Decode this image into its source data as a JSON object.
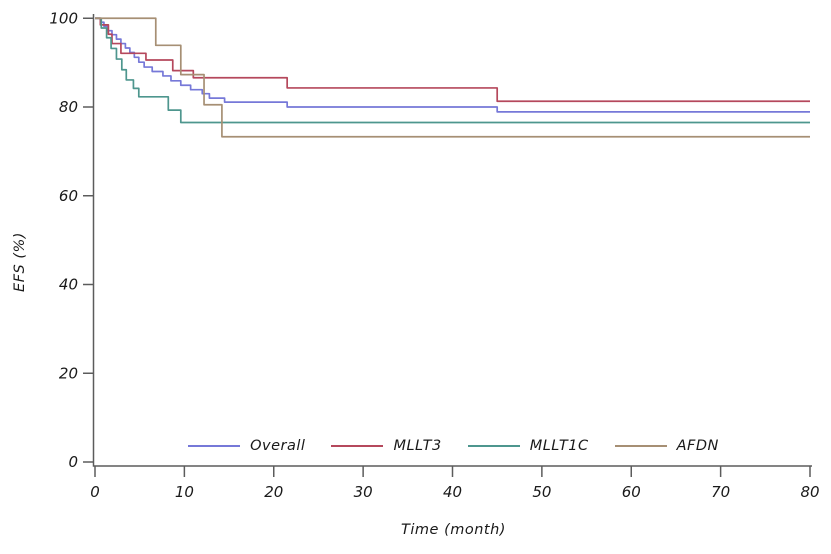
{
  "chart_data": {
    "type": "line",
    "subtype": "kaplan-meier-step",
    "title": "",
    "xlabel": "Time (month)",
    "ylabel": "EFS (%)",
    "xlim": [
      0,
      80
    ],
    "ylim": [
      0,
      100
    ],
    "xticks": [
      0,
      10,
      20,
      30,
      40,
      50,
      60,
      70,
      80
    ],
    "yticks": [
      0,
      20,
      40,
      60,
      80,
      100
    ],
    "grid": false,
    "legend_position": "bottom-center",
    "x_end": 80,
    "series": [
      {
        "name": "Overall",
        "color": "#7678d8",
        "steps": [
          [
            0,
            100
          ],
          [
            0.6,
            99.1
          ],
          [
            1.0,
            98.2
          ],
          [
            1.4,
            97.2
          ],
          [
            1.9,
            96.3
          ],
          [
            2.4,
            95.3
          ],
          [
            2.9,
            94.3
          ],
          [
            3.4,
            93.3
          ],
          [
            3.9,
            92.3
          ],
          [
            4.4,
            91.2
          ],
          [
            4.9,
            90.1
          ],
          [
            5.5,
            89.0
          ],
          [
            6.4,
            88.0
          ],
          [
            7.6,
            87.0
          ],
          [
            8.5,
            85.9
          ],
          [
            9.6,
            84.9
          ],
          [
            10.7,
            83.9
          ],
          [
            12.0,
            83.0
          ],
          [
            12.8,
            82.0
          ],
          [
            14.5,
            81.1
          ],
          [
            21.5,
            80.0
          ],
          [
            45,
            78.9
          ]
        ]
      },
      {
        "name": "MLLT3",
        "color": "#b5485c",
        "steps": [
          [
            0,
            100
          ],
          [
            0.6,
            98.5
          ],
          [
            1.5,
            96.4
          ],
          [
            1.9,
            94.3
          ],
          [
            2.9,
            92.1
          ],
          [
            5.7,
            90.6
          ],
          [
            8.7,
            88.2
          ],
          [
            11.0,
            86.6
          ],
          [
            21.5,
            84.3
          ],
          [
            45,
            81.3
          ]
        ]
      },
      {
        "name": "MLLT1C",
        "color": "#4e968e",
        "steps": [
          [
            0,
            100
          ],
          [
            0.7,
            97.8
          ],
          [
            1.3,
            95.6
          ],
          [
            1.8,
            93.2
          ],
          [
            2.4,
            90.8
          ],
          [
            3.0,
            88.4
          ],
          [
            3.5,
            86.1
          ],
          [
            4.3,
            84.2
          ],
          [
            4.9,
            82.3
          ],
          [
            8.2,
            79.3
          ],
          [
            9.6,
            76.5
          ]
        ]
      },
      {
        "name": "AFDN",
        "color": "#a68f74",
        "steps": [
          [
            0,
            100
          ],
          [
            6.8,
            93.9
          ],
          [
            9.6,
            87.3
          ],
          [
            12.2,
            80.5
          ],
          [
            14.2,
            73.3
          ]
        ]
      }
    ]
  },
  "colors": {
    "axis": "#5c5c5c",
    "text": "#1a1a1a",
    "background": "#ffffff"
  }
}
